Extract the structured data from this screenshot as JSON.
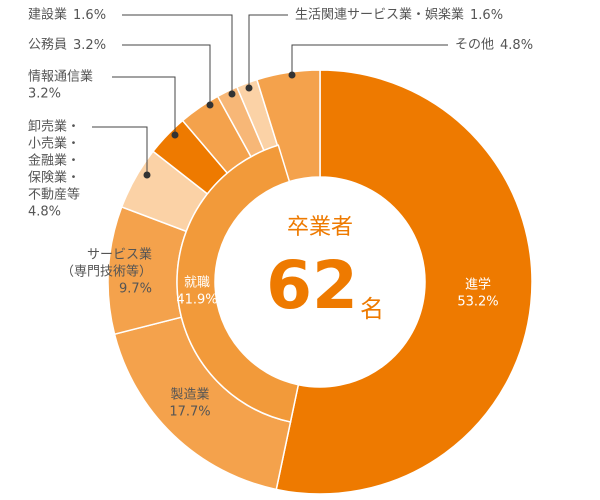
{
  "chart_data": {
    "type": "donut",
    "center_title": "卒業者",
    "center_value": 62,
    "center_unit": "名",
    "segments": [
      {
        "label": [
          "進学"
        ],
        "value": 53.2,
        "value_label": "53.2%",
        "color": "#ee7a00"
      },
      {
        "label": [
          "製造業"
        ],
        "value": 17.7,
        "value_label": "17.7%",
        "color": "#f4a24c"
      },
      {
        "label": [
          "サービス業",
          "（専門技術等）"
        ],
        "value": 9.7,
        "value_label": "9.7%",
        "color": "#f4a24c"
      },
      {
        "label": [
          "卸売業・",
          "小売業・",
          "金融業・",
          "保険業・",
          "不動産等"
        ],
        "value": 4.8,
        "value_label": "4.8%",
        "color": "#fbd2a6"
      },
      {
        "label": [
          "情報通信業"
        ],
        "value": 3.2,
        "value_label": "3.2%",
        "color": "#ee7a00"
      },
      {
        "label": [
          "公務員"
        ],
        "value": 3.2,
        "value_label": "3.2%",
        "color": "#f4a24c"
      },
      {
        "label": [
          "建設業"
        ],
        "value": 1.6,
        "value_label": "1.6%",
        "color": "#f7b777"
      },
      {
        "label": [
          "生活関連サービス業・娯楽業"
        ],
        "value": 1.6,
        "value_label": "1.6%",
        "color": "#fbd2a6"
      },
      {
        "label": [
          "その他"
        ],
        "value": 4.8,
        "value_label": "4.8%",
        "color": "#f4a24c"
      }
    ],
    "inner": {
      "label": "就職",
      "value": 41.9,
      "value_label": "41.9%",
      "color": "#f29a3a"
    }
  }
}
